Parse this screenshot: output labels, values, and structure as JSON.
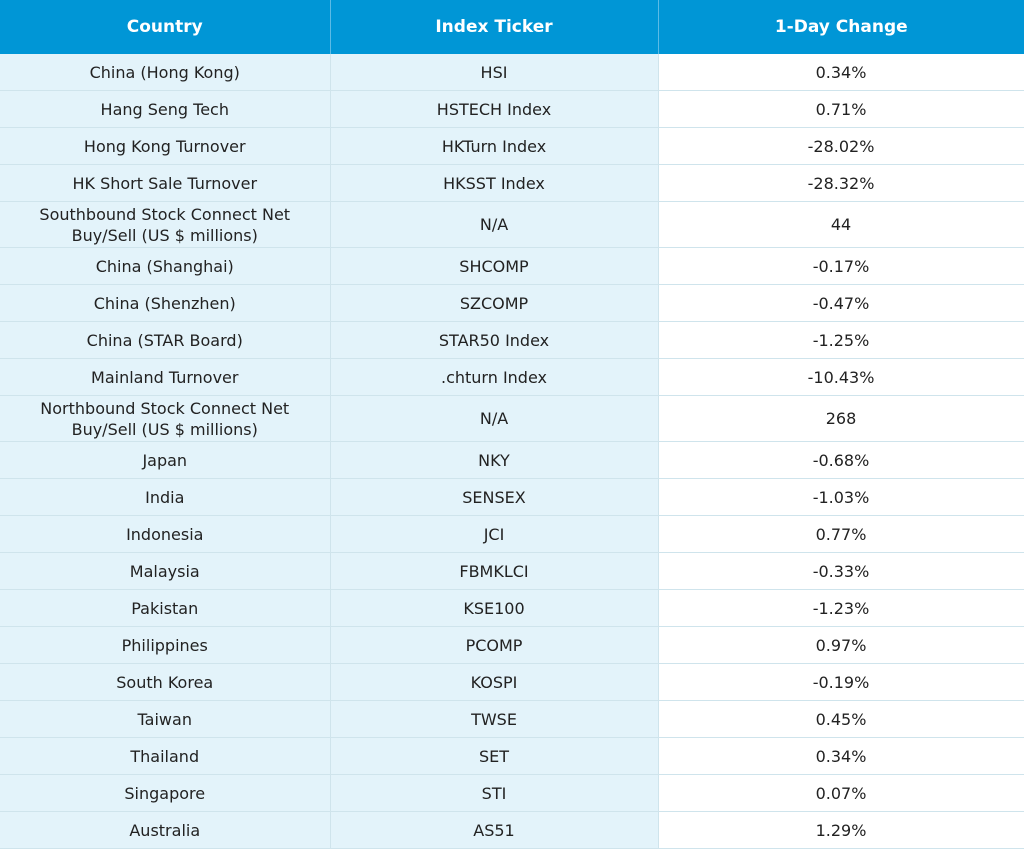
{
  "table": {
    "header": [
      "Country",
      "Index Ticker",
      "1-Day Change"
    ],
    "rows": [
      [
        "China (Hong Kong)",
        "HSI",
        "0.34%"
      ],
      [
        "Hang Seng Tech",
        "HSTECH Index",
        "0.71%"
      ],
      [
        "Hong Kong Turnover",
        "HKTurn Index",
        "-28.02%"
      ],
      [
        "HK Short Sale Turnover",
        "HKSST Index",
        "-28.32%"
      ],
      [
        "Southbound Stock Connect Net Buy/Sell (US $ millions)",
        "N/A",
        "44"
      ],
      [
        "China (Shanghai)",
        "SHCOMP",
        "-0.17%"
      ],
      [
        "China (Shenzhen)",
        "SZCOMP",
        "-0.47%"
      ],
      [
        "China (STAR Board)",
        "STAR50 Index",
        "-1.25%"
      ],
      [
        "Mainland Turnover",
        ".chturn Index",
        "-10.43%"
      ],
      [
        "Northbound Stock Connect Net Buy/Sell (US $ millions)",
        "N/A",
        "268"
      ],
      [
        "Japan",
        "NKY",
        "-0.68%"
      ],
      [
        "India",
        "SENSEX",
        "-1.03%"
      ],
      [
        "Indonesia",
        "JCI",
        "0.77%"
      ],
      [
        "Malaysia",
        "FBMKLCI",
        "-0.33%"
      ],
      [
        "Pakistan",
        "KSE100",
        "-1.23%"
      ],
      [
        "Philippines",
        "PCOMP",
        "0.97%"
      ],
      [
        "South Korea",
        "KOSPI",
        "-0.19%"
      ],
      [
        "Taiwan",
        "TWSE",
        "0.45%"
      ],
      [
        "Thailand",
        "SET",
        "0.34%"
      ],
      [
        "Singapore",
        "STI",
        "0.07%"
      ],
      [
        "Australia",
        "AS51",
        "1.29%"
      ]
    ]
  }
}
